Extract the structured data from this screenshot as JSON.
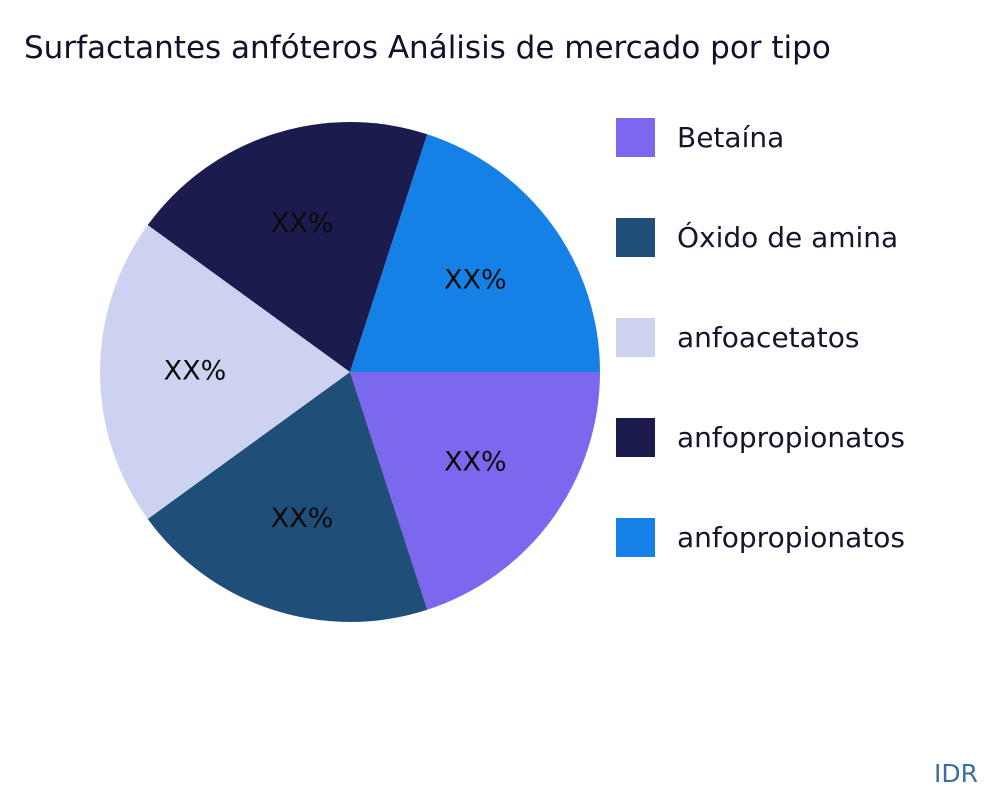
{
  "title": "Surfactantes anfóteros Análisis de mercado por tipo",
  "watermark": "IDR",
  "chart_data": {
    "type": "pie",
    "title": "Surfactantes anfóteros Análisis de mercado por tipo",
    "slices": [
      {
        "label": "Betaína",
        "value": 20,
        "display_value": "XX%",
        "color": "#7B68EE"
      },
      {
        "label": "Óxido de amina",
        "value": 20,
        "display_value": "XX%",
        "color": "#1F4E79"
      },
      {
        "label": "anfoacetatos",
        "value": 20,
        "display_value": "XX%",
        "color": "#CDD2F0"
      },
      {
        "label": "anfopropionatos",
        "value": 20,
        "display_value": "XX%",
        "color": "#1B1B4D"
      },
      {
        "label": "anfopropionatos",
        "value": 20,
        "display_value": "XX%",
        "color": "#1581E7"
      }
    ],
    "start_angle": "3 o'clock, clockwise",
    "legend_position": "right"
  }
}
